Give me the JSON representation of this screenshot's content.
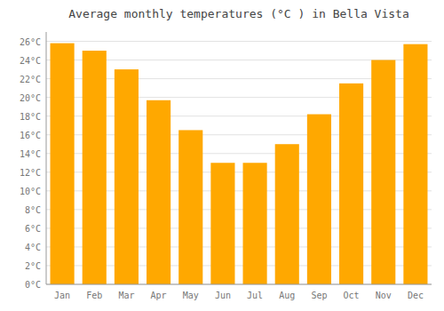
{
  "chart_data": {
    "type": "bar",
    "title": "Average monthly temperatures (°C ) in Bella Vista",
    "categories": [
      "Jan",
      "Feb",
      "Mar",
      "Apr",
      "May",
      "Jun",
      "Jul",
      "Aug",
      "Sep",
      "Oct",
      "Nov",
      "Dec"
    ],
    "values": [
      25.8,
      25.0,
      23.0,
      19.7,
      16.5,
      13.0,
      13.0,
      15.0,
      18.2,
      21.5,
      24.0,
      25.7
    ],
    "color": "#FFA800",
    "ylim": [
      0,
      27
    ],
    "yticks": [
      {
        "value": 0,
        "label": "0°C"
      },
      {
        "value": 2,
        "label": "2°C"
      },
      {
        "value": 4,
        "label": "4°C"
      },
      {
        "value": 6,
        "label": "6°C"
      },
      {
        "value": 8,
        "label": "8°C"
      },
      {
        "value": 10,
        "label": "10°C"
      },
      {
        "value": 12,
        "label": "12°C"
      },
      {
        "value": 14,
        "label": "14°C"
      },
      {
        "value": 16,
        "label": "16°C"
      },
      {
        "value": 18,
        "label": "18°C"
      },
      {
        "value": 20,
        "label": "20°C"
      },
      {
        "value": 22,
        "label": "22°C"
      },
      {
        "value": 24,
        "label": "24°C"
      },
      {
        "value": 26,
        "label": "26°C"
      }
    ],
    "grid": true
  }
}
